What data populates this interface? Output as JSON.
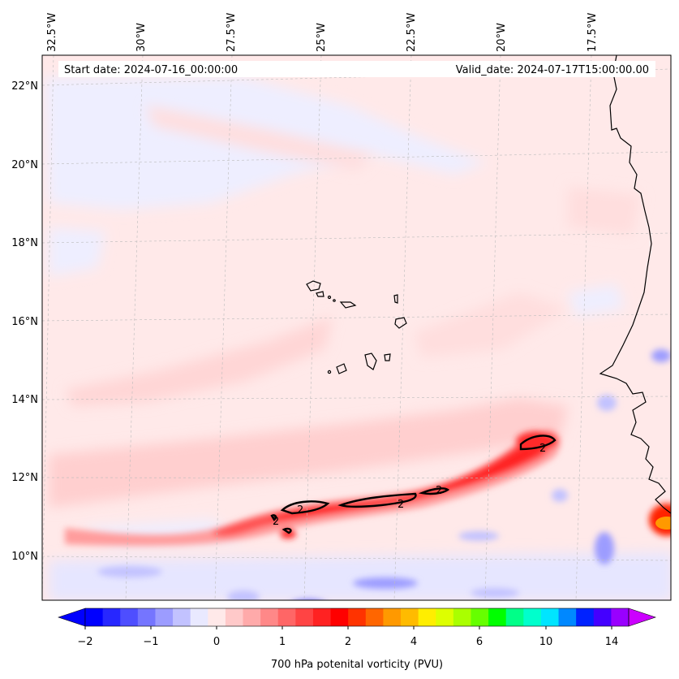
{
  "map": {
    "start_label": "Start date: 2024-07-16_00:00:00",
    "valid_label": "Valid_date: 2024-07-17T15:00:00.00",
    "lon_labels": [
      "32.5°W",
      "30°W",
      "27.5°W",
      "25°W",
      "22.5°W",
      "20°W",
      "17.5°W"
    ],
    "lat_labels": [
      "22°N",
      "20°N",
      "18°N",
      "16°N",
      "14°N",
      "12°N",
      "10°N"
    ],
    "contour_label": "2"
  },
  "colorbar": {
    "title": "700 hPa potenital vorticity (PVU)",
    "ticks": [
      "−2",
      "−1",
      "0",
      "1",
      "2",
      "4",
      "6",
      "10",
      "14"
    ],
    "colors": [
      "#0000ff",
      "#2727ff",
      "#4e4eff",
      "#7575ff",
      "#9c9cff",
      "#c2c2ff",
      "#e9e9ff",
      "#ffe9e9",
      "#ffc9c9",
      "#ffaaaa",
      "#ff8888",
      "#ff6666",
      "#ff4444",
      "#ff2222",
      "#ff0000",
      "#ff3300",
      "#ff6600",
      "#ff9900",
      "#ffbb00",
      "#ffee00",
      "#ddff00",
      "#aaff00",
      "#66ff00",
      "#00ff00",
      "#00ff88",
      "#00ffcc",
      "#00e5ff",
      "#0088ff",
      "#0022ff",
      "#4400ff",
      "#9900ff"
    ],
    "over_color": "#cc00ff",
    "under_color": "#0000ff"
  }
}
